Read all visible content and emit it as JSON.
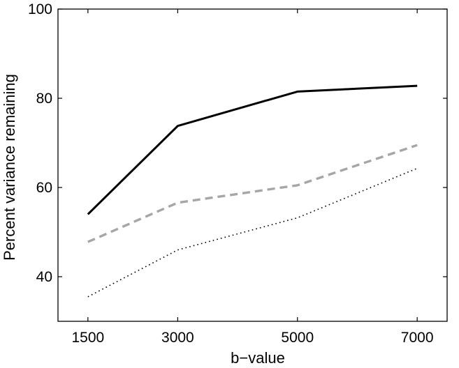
{
  "chart_data": {
    "type": "line",
    "title": "",
    "xlabel": "b−value",
    "ylabel": "Percent variance remaining",
    "x": [
      1500,
      3000,
      5000,
      7000
    ],
    "xticks": [
      "1500",
      "3000",
      "5000",
      "7000"
    ],
    "xlim": [
      1000,
      7500
    ],
    "ylim": [
      30,
      100
    ],
    "yticks": [
      "40",
      "60",
      "80",
      "100"
    ],
    "grid": false,
    "legend": "none",
    "series": [
      {
        "values": [
          54.0,
          73.8,
          81.5,
          82.8
        ],
        "color": "#000000",
        "style": "solid"
      },
      {
        "values": [
          47.8,
          56.6,
          60.5,
          69.5
        ],
        "color": "#a6a6a6",
        "style": "dashed"
      },
      {
        "values": [
          35.5,
          46.0,
          53.2,
          64.3
        ],
        "color": "#000000",
        "style": "dotted"
      }
    ]
  }
}
